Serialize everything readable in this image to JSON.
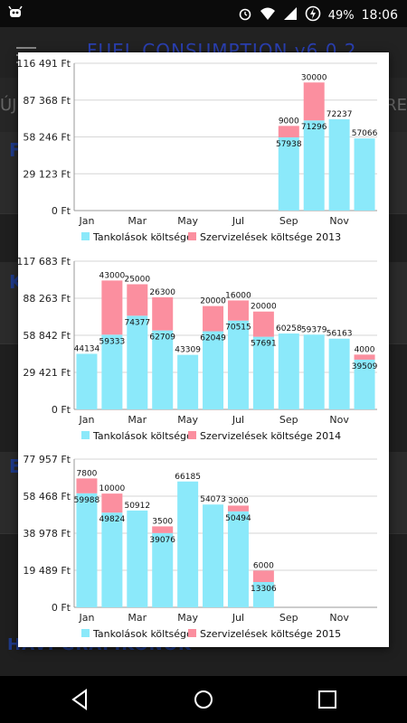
{
  "status_bar": {
    "battery": "49%",
    "time": "18:06",
    "icons": [
      "android-debug-icon",
      "alarm-icon",
      "wifi-icon",
      "signal-icon",
      "battery-saver-icon"
    ]
  },
  "app_bar": {
    "title": "FUEL CONSUMPTION v6.0.2"
  },
  "background": {
    "tab_left": "ÚJ",
    "tab_right": "RE",
    "letters": [
      "F",
      "K",
      "E"
    ],
    "footer": "HAVI GRAFIKONOK"
  },
  "colors": {
    "fuel": "#8be9fa",
    "service": "#fb8f9f",
    "grid": "#d6d6d6"
  },
  "chart_data": [
    {
      "type": "bar",
      "stacked": true,
      "year_label": "2013",
      "y_ticks": [
        "0 Ft",
        "29 123 Ft",
        "58 246 Ft",
        "87 368 Ft",
        "116 491 Ft"
      ],
      "ylim": [
        0,
        116491
      ],
      "categories": [
        "Jan",
        "Feb",
        "Mar",
        "Apr",
        "May",
        "Jun",
        "Jul",
        "Aug",
        "Sep",
        "Oct",
        "Nov",
        "Dec"
      ],
      "x_tick_labels": [
        "Jan",
        "",
        "Mar",
        "",
        "May",
        "",
        "Jul",
        "",
        "Sep",
        "",
        "Nov",
        ""
      ],
      "series": [
        {
          "name": "Tankolások költsége",
          "values": [
            0,
            0,
            0,
            0,
            0,
            0,
            0,
            0,
            57938,
            71296,
            72237,
            57066
          ]
        },
        {
          "name": "Szervizelések költsége",
          "values": [
            0,
            0,
            0,
            0,
            0,
            0,
            0,
            0,
            9000,
            30000,
            0,
            0
          ]
        }
      ]
    },
    {
      "type": "bar",
      "stacked": true,
      "year_label": "2014",
      "y_ticks": [
        "0 Ft",
        "29 421 Ft",
        "58 842 Ft",
        "88 263 Ft",
        "117 683 Ft"
      ],
      "ylim": [
        0,
        117683
      ],
      "categories": [
        "Jan",
        "Feb",
        "Mar",
        "Apr",
        "May",
        "Jun",
        "Jul",
        "Aug",
        "Sep",
        "Oct",
        "Nov",
        "Dec"
      ],
      "x_tick_labels": [
        "Jan",
        "",
        "Mar",
        "",
        "May",
        "",
        "Jul",
        "",
        "Sep",
        "",
        "Nov",
        ""
      ],
      "series": [
        {
          "name": "Tankolások költsége",
          "values": [
            44134,
            59333,
            74377,
            62709,
            43309,
            62049,
            70515,
            57691,
            60258,
            59379,
            56163,
            39509
          ]
        },
        {
          "name": "Szervizelések költsége",
          "values": [
            0,
            43000,
            25000,
            26300,
            0,
            20000,
            16000,
            20000,
            0,
            0,
            0,
            4000
          ]
        }
      ]
    },
    {
      "type": "bar",
      "stacked": true,
      "year_label": "2015",
      "y_ticks": [
        "0 Ft",
        "19 489 Ft",
        "38 978 Ft",
        "58 468 Ft",
        "77 957 Ft"
      ],
      "ylim": [
        0,
        77957
      ],
      "categories": [
        "Jan",
        "Feb",
        "Mar",
        "Apr",
        "May",
        "Jun",
        "Jul",
        "Aug",
        "Sep",
        "Oct",
        "Nov",
        "Dec"
      ],
      "x_tick_labels": [
        "Jan",
        "",
        "Mar",
        "",
        "May",
        "",
        "Jul",
        "",
        "Sep",
        "",
        "Nov",
        ""
      ],
      "series": [
        {
          "name": "Tankolások költsége",
          "values": [
            59988,
            49824,
            50912,
            39076,
            66185,
            54073,
            50494,
            13306,
            0,
            0,
            0,
            0
          ]
        },
        {
          "name": "Szervizelések költsége",
          "values": [
            7800,
            10000,
            0,
            3500,
            0,
            0,
            3000,
            6000,
            0,
            0,
            0,
            0
          ]
        }
      ]
    }
  ]
}
